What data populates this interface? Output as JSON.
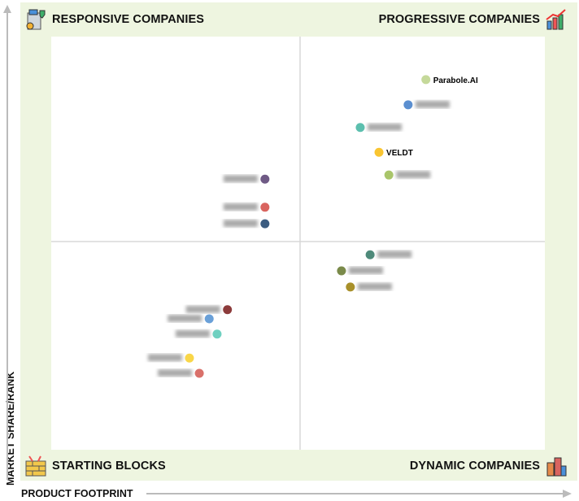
{
  "quadrants": {
    "top_left": "RESPONSIVE COMPANIES",
    "top_right": "PROGRESSIVE COMPANIES",
    "bottom_left": "STARTING BLOCKS",
    "bottom_right": "DYNAMIC COMPANIES"
  },
  "chart_data": {
    "type": "scatter",
    "title": "",
    "xlabel": "PRODUCT FOOTPRINT",
    "ylabel": "MARKET SHARE/RANK",
    "xlim": [
      0,
      100
    ],
    "ylim": [
      0,
      100
    ],
    "grid": false,
    "points": [
      {
        "label": "Parabole.AI",
        "x": 75.9,
        "y": 89.6,
        "color": "#c5d99a",
        "side": "right"
      },
      {
        "label": "",
        "x": 72.3,
        "y": 83.5,
        "color": "#5b8fd0",
        "side": "right"
      },
      {
        "label": "",
        "x": 62.6,
        "y": 78.0,
        "color": "#5cbfae",
        "side": "right"
      },
      {
        "label": "VELDT",
        "x": 66.4,
        "y": 72.0,
        "color": "#f9c531",
        "side": "right"
      },
      {
        "label": "",
        "x": 68.4,
        "y": 66.5,
        "color": "#a9c56a",
        "side": "right"
      },
      {
        "label": "",
        "x": 43.3,
        "y": 65.5,
        "color": "#6f5a85",
        "side": "left"
      },
      {
        "label": "",
        "x": 43.3,
        "y": 58.7,
        "color": "#d9645f",
        "side": "left"
      },
      {
        "label": "",
        "x": 43.3,
        "y": 54.7,
        "color": "#3c5c80",
        "side": "left"
      },
      {
        "label": "",
        "x": 64.6,
        "y": 47.2,
        "color": "#4e8a7a",
        "side": "right"
      },
      {
        "label": "",
        "x": 58.8,
        "y": 43.3,
        "color": "#7a8a4a",
        "side": "right"
      },
      {
        "label": "",
        "x": 60.6,
        "y": 39.4,
        "color": "#a8902a",
        "side": "right"
      },
      {
        "label": "",
        "x": 35.7,
        "y": 33.9,
        "color": "#8c3b3b",
        "side": "left"
      },
      {
        "label": "",
        "x": 32.0,
        "y": 31.7,
        "color": "#6aa0d8",
        "side": "left"
      },
      {
        "label": "",
        "x": 33.6,
        "y": 28.0,
        "color": "#6fd0c0",
        "side": "left"
      },
      {
        "label": "",
        "x": 28.0,
        "y": 22.2,
        "color": "#f9d648",
        "side": "left"
      },
      {
        "label": "",
        "x": 30.0,
        "y": 18.5,
        "color": "#d9706a",
        "side": "left"
      }
    ]
  }
}
